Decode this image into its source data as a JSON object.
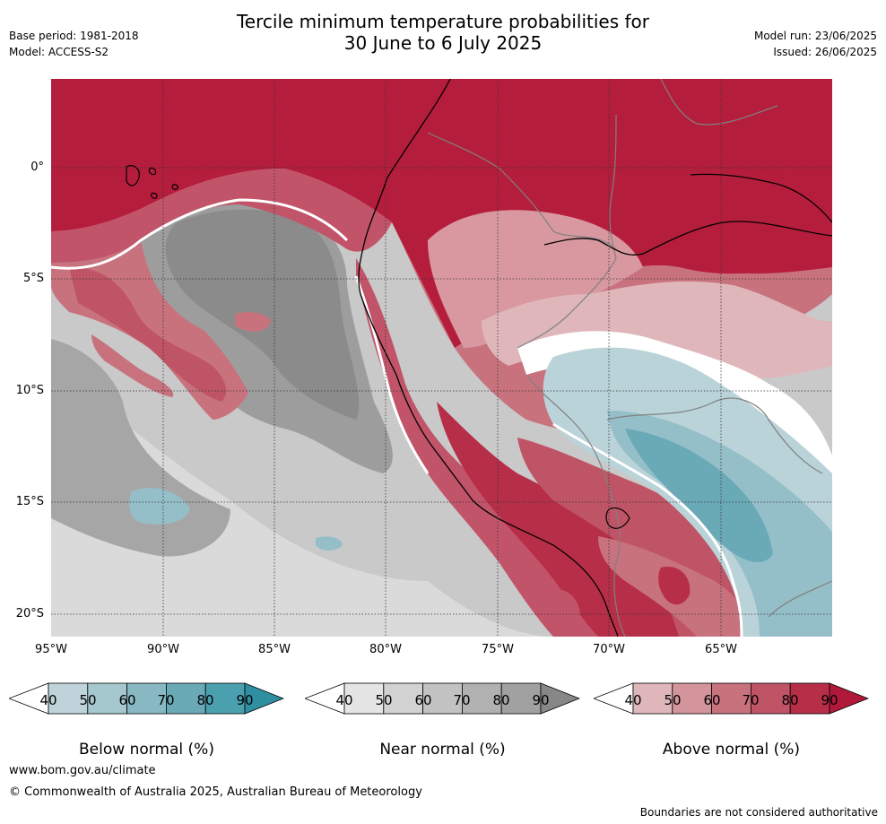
{
  "title_line1": "Tercile minimum temperature probabilities for",
  "title_line2": "30 June to 6 July 2025",
  "meta_left": {
    "base_period": "Base period: 1981-2018",
    "model": "Model: ACCESS-S2"
  },
  "meta_right": {
    "model_run": "Model run: 23/06/2025",
    "issued": "Issued: 26/06/2025"
  },
  "map": {
    "lat_ticks": [
      "0°",
      "5°S",
      "10°S",
      "15°S",
      "20°S"
    ],
    "lon_ticks": [
      "95°W",
      "90°W",
      "85°W",
      "80°W",
      "75°W",
      "70°W",
      "65°W"
    ]
  },
  "colorbars": [
    {
      "label": "Below normal (%)",
      "ticks": [
        "40",
        "50",
        "60",
        "70",
        "80",
        "90"
      ],
      "colors": [
        "#bfd4da",
        "#a5c7ce",
        "#88b8c2",
        "#6aaab7",
        "#4ba0b0",
        "#2f8fa1"
      ]
    },
    {
      "label": "Near normal (%)",
      "ticks": [
        "40",
        "50",
        "60",
        "70",
        "80",
        "90"
      ],
      "colors": [
        "#e5e5e5",
        "#d2d2d2",
        "#c2c2c2",
        "#b1b1b1",
        "#a1a1a1",
        "#878787"
      ]
    },
    {
      "label": "Above normal (%)",
      "ticks": [
        "40",
        "50",
        "60",
        "70",
        "80",
        "90"
      ],
      "colors": [
        "#dfb7bb",
        "#d3949b",
        "#c8727e",
        "#bf5466",
        "#b72e48",
        "#b1193a"
      ]
    }
  ],
  "footer": {
    "website": "www.bom.gov.au/climate",
    "copyright": "© Commonwealth of Australia 2025, Australian Bureau of Meteorology",
    "disclaimer": "Boundaries are not considered authoritative"
  }
}
